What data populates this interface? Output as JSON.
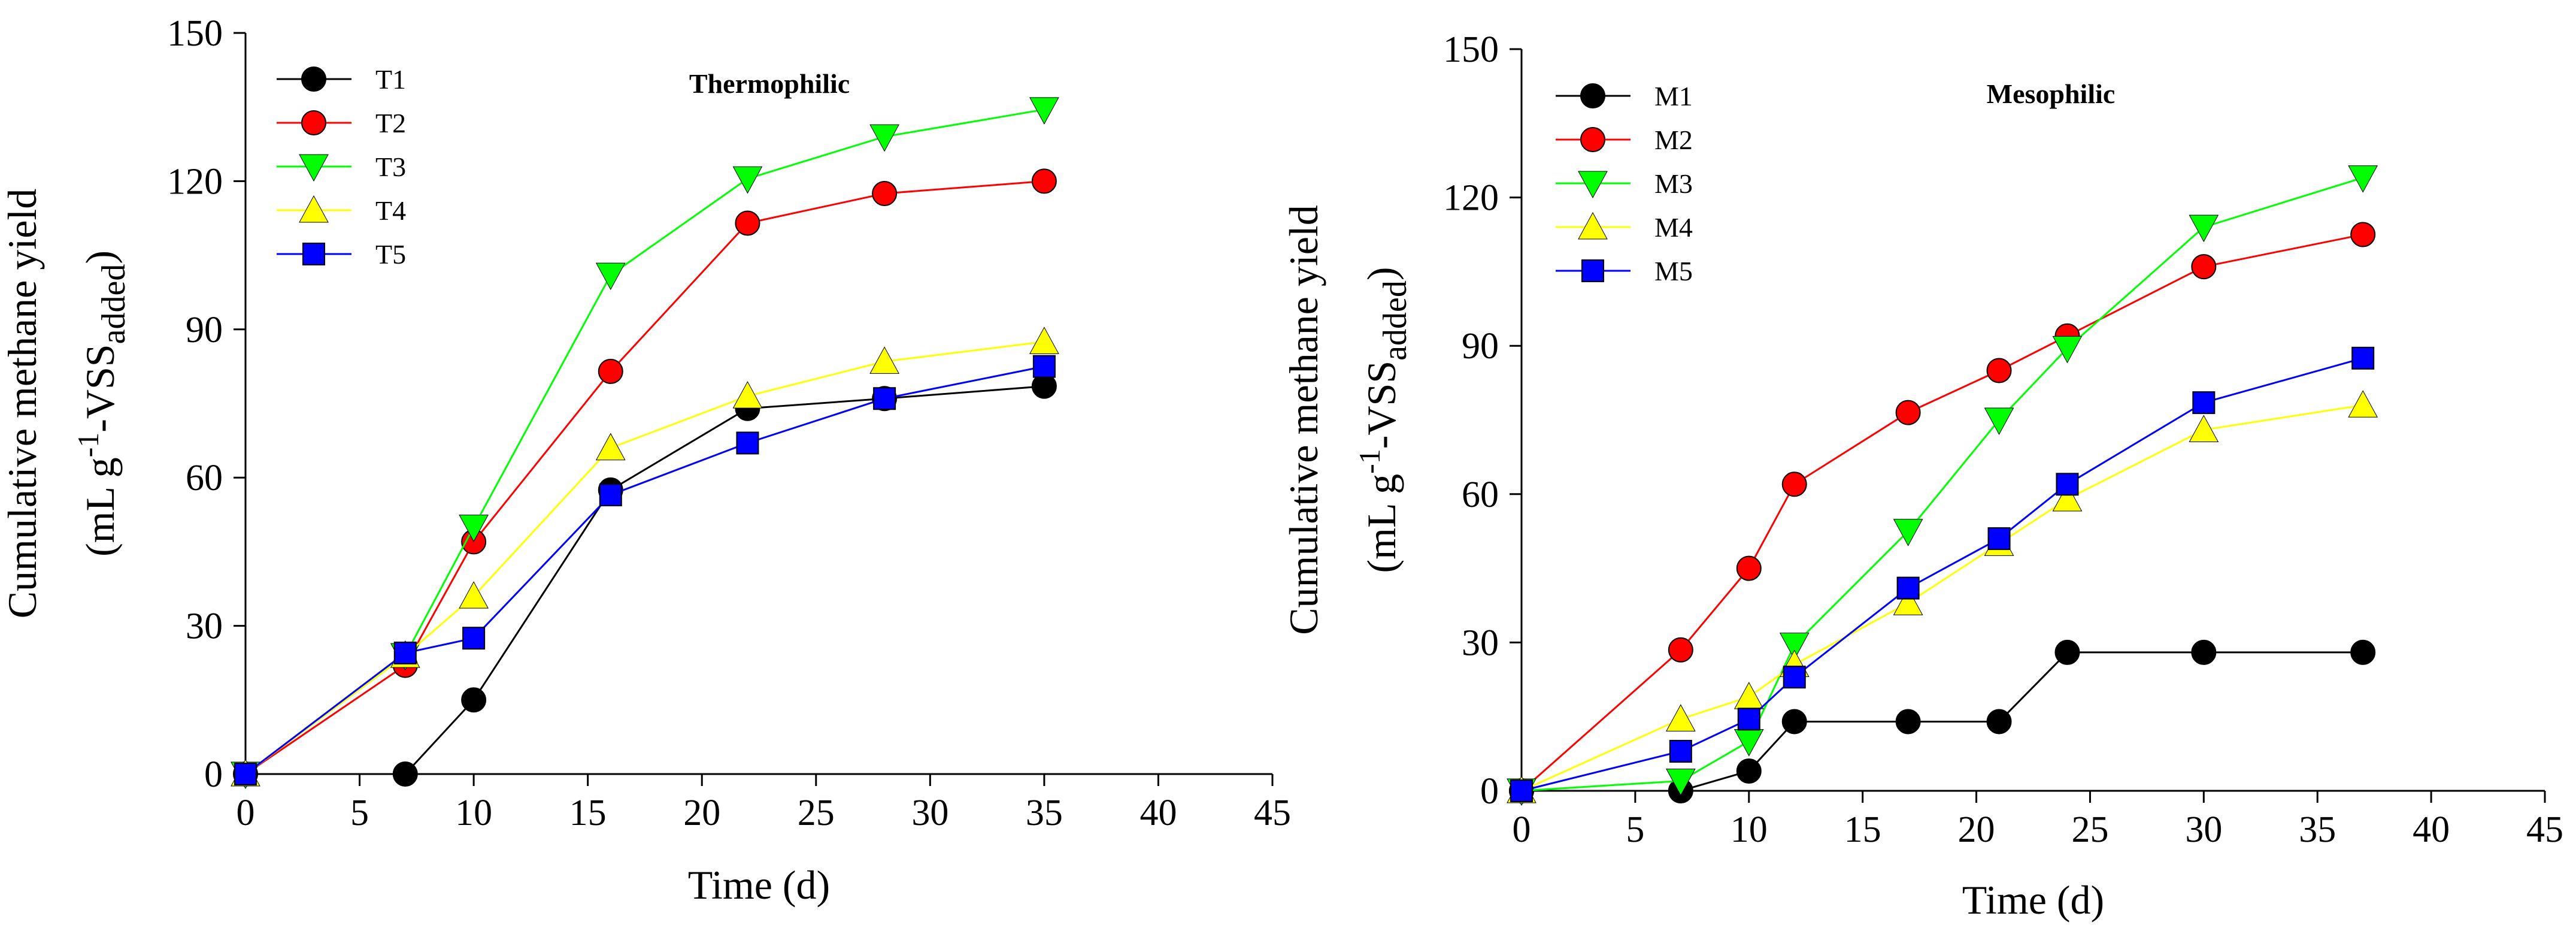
{
  "chart_data": [
    {
      "type": "line",
      "title": "Thermophilic",
      "xlabel": "Time (d)",
      "ylabel_line1": "Cumulative methane yield",
      "ylabel_line2": {
        "open": "(mL g",
        "sup": "-1",
        "mid": "-VSS",
        "sub": "added",
        "close": ")"
      },
      "xlim": [
        0,
        45
      ],
      "ylim": [
        0,
        150
      ],
      "xticks": [
        0,
        5,
        10,
        15,
        20,
        25,
        30,
        35,
        40,
        45
      ],
      "yticks": [
        0,
        30,
        60,
        90,
        120,
        150
      ],
      "grid": false,
      "legend_position": "top-left",
      "series": [
        {
          "name": "T1",
          "color": "#000000",
          "marker": "circle",
          "x": [
            7,
            10,
            16,
            22,
            28,
            35
          ],
          "y": [
            0,
            15,
            57.5,
            74,
            76,
            78.5
          ]
        },
        {
          "name": "T2",
          "color": "#ff0000",
          "marker": "circle",
          "x": [
            0,
            7,
            10,
            16,
            22,
            28,
            35
          ],
          "y": [
            0,
            22,
            47,
            81.5,
            111.5,
            117.5,
            120
          ]
        },
        {
          "name": "T3",
          "color": "#00ff00",
          "marker": "triangle-down",
          "x": [
            0,
            7,
            10,
            16,
            22,
            28,
            35
          ],
          "y": [
            0,
            24,
            50,
            101,
            120.5,
            129,
            134.5
          ]
        },
        {
          "name": "T4",
          "color": "#ffff00",
          "marker": "triangle-up",
          "x": [
            0,
            7,
            10,
            16,
            22,
            28,
            35
          ],
          "y": [
            0,
            24,
            36,
            66,
            76.5,
            83.5,
            87.5
          ]
        },
        {
          "name": "T5",
          "color": "#0000ff",
          "marker": "square",
          "x": [
            0,
            7,
            10,
            16,
            22,
            28,
            35
          ],
          "y": [
            0,
            24.5,
            27.5,
            56.5,
            67,
            76,
            82.5
          ]
        }
      ]
    },
    {
      "type": "line",
      "title": "Mesophilic",
      "xlabel": "Time (d)",
      "ylabel_line1": "Cumulative methane yield",
      "ylabel_line2": {
        "open": "(mL g",
        "sup": "-1",
        "mid": "-VSS",
        "sub": "added",
        "close": ")"
      },
      "xlim": [
        0,
        45
      ],
      "ylim": [
        0,
        150
      ],
      "xticks": [
        0,
        5,
        10,
        15,
        20,
        25,
        30,
        35,
        40,
        45
      ],
      "yticks": [
        0,
        30,
        60,
        90,
        120,
        150
      ],
      "grid": false,
      "legend_position": "top-left",
      "series": [
        {
          "name": "M1",
          "color": "#000000",
          "marker": "circle",
          "x": [
            0,
            7,
            10,
            12,
            17,
            21,
            24,
            30,
            37
          ],
          "y": [
            0,
            0,
            4,
            14,
            14,
            14,
            28,
            28,
            28
          ]
        },
        {
          "name": "M2",
          "color": "#ff0000",
          "marker": "circle",
          "x": [
            0,
            7,
            10,
            12,
            17,
            21,
            24,
            30,
            37
          ],
          "y": [
            0,
            28.5,
            45,
            62,
            76.5,
            85,
            92,
            106,
            112.5
          ]
        },
        {
          "name": "M3",
          "color": "#00ff00",
          "marker": "triangle-down",
          "x": [
            0,
            7,
            10,
            12,
            17,
            21,
            24,
            30,
            37
          ],
          "y": [
            0,
            2,
            10,
            29.5,
            52.5,
            75,
            89.5,
            114,
            124
          ]
        },
        {
          "name": "M4",
          "color": "#ffff00",
          "marker": "triangle-up",
          "x": [
            0,
            7,
            10,
            12,
            17,
            21,
            24,
            30,
            37
          ],
          "y": [
            0,
            14.5,
            19,
            25.5,
            38,
            50,
            59,
            73,
            78
          ]
        },
        {
          "name": "M5",
          "color": "#0000ff",
          "marker": "square",
          "x": [
            0,
            7,
            10,
            12,
            17,
            21,
            24,
            30,
            37
          ],
          "y": [
            0,
            8,
            14.5,
            23,
            41,
            51,
            62,
            78.5,
            87.5
          ]
        }
      ]
    }
  ]
}
